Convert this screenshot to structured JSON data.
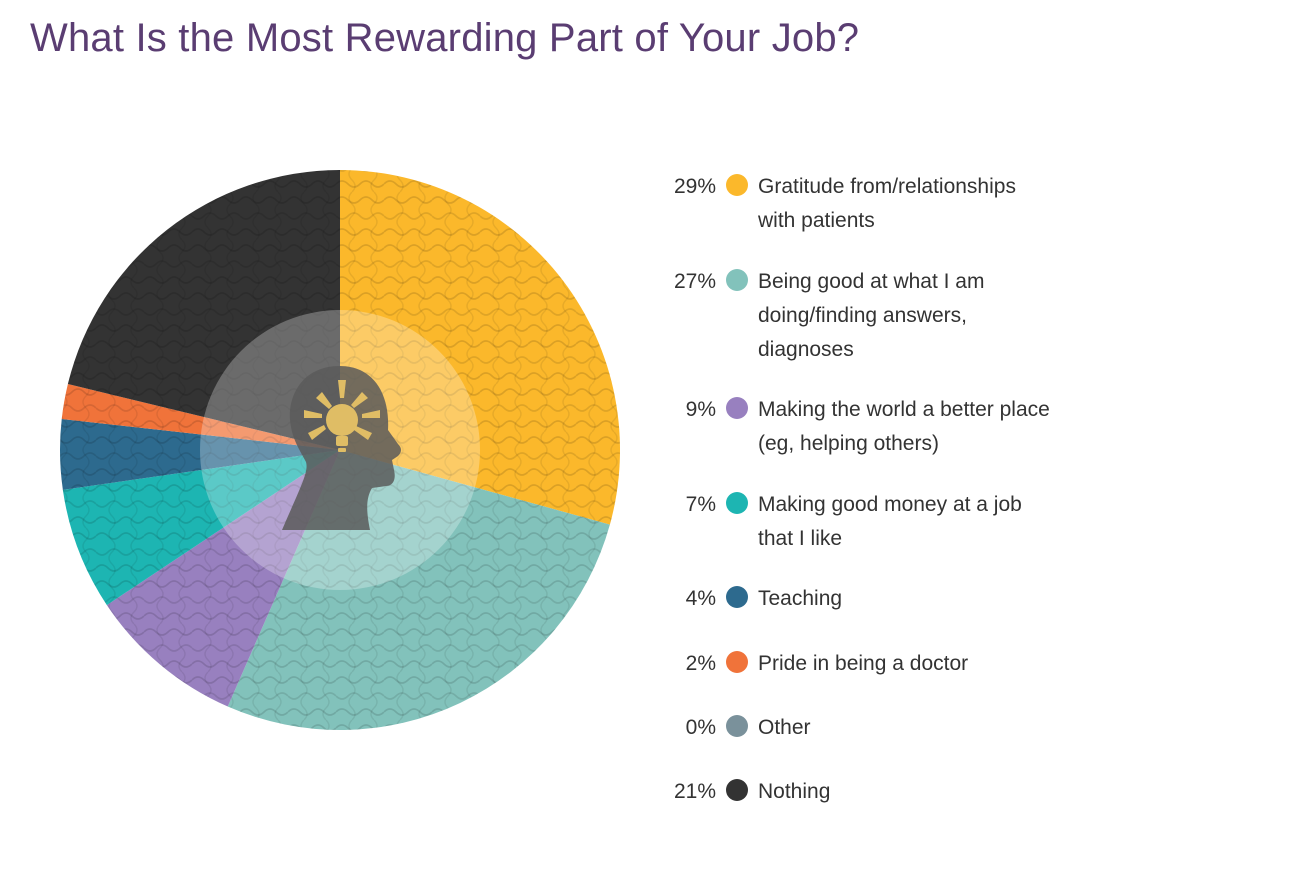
{
  "chart_data": {
    "type": "pie",
    "title": "What Is the Most Rewarding Part of Your Job?",
    "slices": [
      {
        "label": "Gratitude from/relationships with patients",
        "value": 29,
        "display": "29%",
        "color": "#fbb82b"
      },
      {
        "label": "Being good at what I am doing/finding answers, diagnoses",
        "value": 27,
        "display": "27%",
        "color": "#82c2bb"
      },
      {
        "label": "Making the world a better place (eg, helping others)",
        "value": 9,
        "display": "9%",
        "color": "#9880bf"
      },
      {
        "label": "Making good money at a job that I like",
        "value": 7,
        "display": "7%",
        "color": "#1db5b2"
      },
      {
        "label": "Teaching",
        "value": 4,
        "display": "4%",
        "color": "#2d6a8e"
      },
      {
        "label": "Pride in being a doctor",
        "value": 2,
        "display": "2%",
        "color": "#f0733a"
      },
      {
        "label": "Other",
        "value": 0,
        "display": "0%",
        "color": "#7a919b"
      },
      {
        "label": "Nothing",
        "value": 21,
        "display": "21%",
        "color": "#333333"
      }
    ],
    "legend": "right",
    "center_icon": "head-with-lightbulb-icon"
  }
}
